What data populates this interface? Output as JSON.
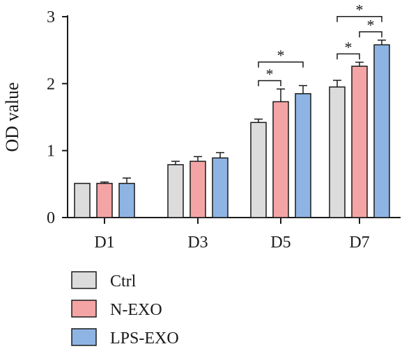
{
  "chart_data": {
    "type": "bar",
    "title": "",
    "xlabel": "",
    "ylabel": "OD value",
    "ylim": [
      0,
      3
    ],
    "yticks": [
      "0",
      "1",
      "2",
      "3"
    ],
    "categories": [
      "D1",
      "D3",
      "D5",
      "D7"
    ],
    "series": [
      {
        "name": "Ctrl",
        "color": "#dcdcdc",
        "values": [
          0.51,
          0.79,
          1.42,
          1.95
        ],
        "errors": [
          0.0,
          0.05,
          0.05,
          0.1
        ]
      },
      {
        "name": "N-EXO",
        "color": "#f4a4a4",
        "values": [
          0.51,
          0.84,
          1.73,
          2.26
        ],
        "errors": [
          0.02,
          0.07,
          0.19,
          0.06
        ]
      },
      {
        "name": "LPS-EXO",
        "color": "#8eb4e3",
        "values": [
          0.51,
          0.89,
          1.85,
          2.58
        ],
        "errors": [
          0.08,
          0.08,
          0.12,
          0.07
        ]
      }
    ],
    "significance": [
      {
        "category": "D5",
        "from": "Ctrl",
        "to": "N-EXO",
        "label": "*"
      },
      {
        "category": "D5",
        "from": "Ctrl",
        "to": "LPS-EXO",
        "label": "*"
      },
      {
        "category": "D7",
        "from": "Ctrl",
        "to": "N-EXO",
        "label": "*"
      },
      {
        "category": "D7",
        "from": "N-EXO",
        "to": "LPS-EXO",
        "label": "*"
      },
      {
        "category": "D7",
        "from": "Ctrl",
        "to": "LPS-EXO",
        "label": "*"
      }
    ],
    "legend_position": "bottom-left",
    "grid": false
  }
}
